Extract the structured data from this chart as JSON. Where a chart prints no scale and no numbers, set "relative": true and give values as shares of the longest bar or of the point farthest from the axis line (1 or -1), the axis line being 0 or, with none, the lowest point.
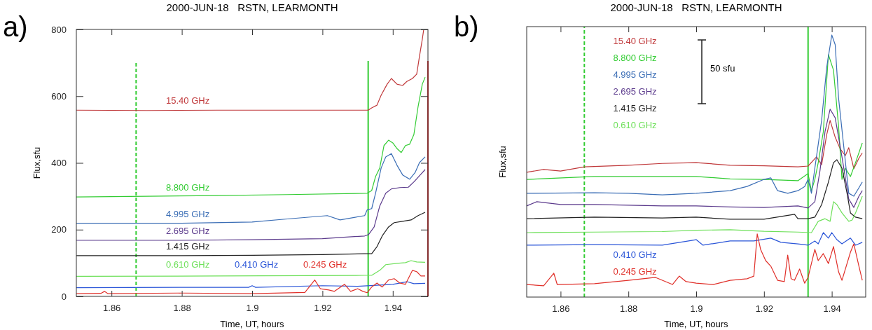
{
  "chart_data": [
    {
      "type": "line",
      "title": "2000-JUN-18   RSTN, LEARMONTH",
      "xlabel": "Time, UT, hours",
      "ylabel": "Flux,sfu",
      "annotations": [
        "a)"
      ],
      "xlim": [
        1.85,
        1.95
      ],
      "xticks": [
        1.86,
        1.88,
        1.9,
        1.92,
        1.94
      ],
      "ylim": [
        0,
        800
      ],
      "yticks": [
        0,
        200,
        400,
        600,
        800
      ],
      "ref_lines": [
        {
          "axis": "x",
          "value": 1.867,
          "color": "#33cc33",
          "line_style": "dashed"
        },
        {
          "axis": "x",
          "value": 1.933,
          "color": "#33cc33",
          "line_style": "solid"
        },
        {
          "axis": "x",
          "value": 1.95,
          "color": "#d62728",
          "line_style": "solid"
        }
      ],
      "series": [
        {
          "name": "15.40 GHz",
          "color": "#c0393b",
          "x": [
            1.85,
            1.87,
            1.89,
            1.91,
            1.933,
            1.934,
            1.9355,
            1.9367,
            1.9384,
            1.9396,
            1.9412,
            1.9428,
            1.944,
            1.9456,
            1.9468,
            1.9476,
            1.9484,
            1.9488
          ],
          "values": [
            558,
            557,
            558,
            558,
            558,
            565,
            573,
            603,
            636,
            653,
            636,
            632,
            644,
            653,
            666,
            720,
            771,
            800
          ]
        },
        {
          "name": "8.800 GHz",
          "color": "#33cc33",
          "x": [
            1.85,
            1.87,
            1.89,
            1.91,
            1.9327,
            1.934,
            1.9351,
            1.9363,
            1.9375,
            1.9388,
            1.94,
            1.9412,
            1.9424,
            1.9436,
            1.9448,
            1.946,
            1.9472,
            1.9484,
            1.9492
          ],
          "values": [
            298,
            300,
            302,
            305,
            309,
            317,
            359,
            385,
            452,
            468,
            460,
            443,
            431,
            452,
            456,
            485,
            569,
            636,
            657
          ]
        },
        {
          "name": "4.995 GHz",
          "color": "#3a6db5",
          "x": [
            1.85,
            1.88,
            1.9,
            1.91,
            1.9214,
            1.925,
            1.932,
            1.9327,
            1.934,
            1.9351,
            1.9367,
            1.938,
            1.9396,
            1.9412,
            1.9428,
            1.9448,
            1.9464,
            1.9476,
            1.9492
          ],
          "values": [
            219,
            219,
            223,
            232,
            242,
            229,
            242,
            259,
            263,
            309,
            385,
            418,
            428,
            393,
            364,
            351,
            372,
            401,
            418
          ]
        },
        {
          "name": "2.695 GHz",
          "color": "#5b3a8c",
          "x": [
            1.85,
            1.88,
            1.9,
            1.92,
            1.932,
            1.9331,
            1.9347,
            1.9363,
            1.938,
            1.9396,
            1.942,
            1.9444,
            1.946,
            1.948,
            1.9492
          ],
          "values": [
            168,
            168,
            170,
            173,
            181,
            185,
            208,
            271,
            309,
            322,
            326,
            327,
            343,
            366,
            380
          ]
        },
        {
          "name": "1.415 GHz",
          "color": "#222222",
          "x": [
            1.85,
            1.88,
            1.9,
            1.92,
            1.932,
            1.934,
            1.9355,
            1.9371,
            1.9388,
            1.9404,
            1.9428,
            1.9452,
            1.9472,
            1.9492
          ],
          "values": [
            122,
            122,
            123,
            125,
            128,
            128,
            149,
            183,
            208,
            221,
            225,
            229,
            242,
            252
          ]
        },
        {
          "name": "0.610 GHz",
          "color": "#6ee05a",
          "x": [
            1.85,
            1.89,
            1.932,
            1.934,
            1.9363,
            1.938,
            1.9412,
            1.9436,
            1.9452,
            1.9468,
            1.9492
          ],
          "values": [
            60,
            61,
            63,
            63,
            78,
            95,
            99,
            101,
            107,
            103,
            102
          ]
        },
        {
          "name": "0.410 GHz",
          "color": "#2a55d8",
          "x": [
            1.85,
            1.88,
            1.899,
            1.9,
            1.901,
            1.92,
            1.93,
            1.94,
            1.944,
            1.946,
            1.9492
          ],
          "values": [
            26,
            27,
            27,
            32,
            27,
            32,
            30,
            36,
            44,
            38,
            39
          ]
        },
        {
          "name": "0.245 GHz",
          "color": "#e0302a",
          "x": [
            1.85,
            1.857,
            1.858,
            1.859,
            1.88,
            1.9,
            1.915,
            1.9178,
            1.9194,
            1.9218,
            1.9234,
            1.9263,
            1.928,
            1.93,
            1.9315,
            1.9327,
            1.934,
            1.9355,
            1.937,
            1.9388,
            1.9404,
            1.942,
            1.9436,
            1.9456,
            1.9468,
            1.948,
            1.9492
          ],
          "values": [
            8,
            9,
            15,
            8,
            10,
            8,
            12,
            49,
            23,
            19,
            15,
            36,
            15,
            23,
            15,
            11,
            28,
            40,
            28,
            49,
            53,
            40,
            36,
            78,
            74,
            61,
            61
          ]
        }
      ]
    },
    {
      "type": "line",
      "title": "2000-JUN-18   RSTN, LEARMONTH",
      "xlabel": "Time, UT, hours",
      "ylabel": "Flux,sfu",
      "annotations": [
        "b)",
        "50 sfu"
      ],
      "relative": true,
      "xlim": [
        1.85,
        1.95
      ],
      "xticks": [
        1.86,
        1.88,
        1.9,
        1.92,
        1.94
      ],
      "ref_lines": [
        {
          "axis": "x",
          "value": 1.867,
          "color": "#33cc33",
          "line_style": "dashed"
        },
        {
          "axis": "x",
          "value": 1.933,
          "color": "#33cc33",
          "line_style": "solid"
        }
      ],
      "series": [
        {
          "name": "15.40 GHz",
          "color": "#c0393b",
          "x": [
            1.85,
            1.855,
            1.86,
            1.867,
            1.88,
            1.89,
            1.9,
            1.91,
            1.92,
            1.93,
            1.933,
            1.9355,
            1.937,
            1.9385,
            1.9395,
            1.941,
            1.9425,
            1.944,
            1.945,
            1.9465,
            1.948,
            1.949
          ],
          "values": [
            0.476,
            0.487,
            0.481,
            0.497,
            0.503,
            0.51,
            0.513,
            0.503,
            0.501,
            0.497,
            0.5,
            0.535,
            0.505,
            0.62,
            0.674,
            0.61,
            0.565,
            0.54,
            0.57,
            0.49,
            0.53,
            0.55
          ]
        },
        {
          "name": "8.800 GHz",
          "color": "#33cc33",
          "x": [
            1.85,
            1.87,
            1.89,
            1.9,
            1.91,
            1.92,
            1.93,
            1.933,
            1.934,
            1.935,
            1.936,
            1.9375,
            1.939,
            1.9405,
            1.942,
            1.943,
            1.944,
            1.9455,
            1.947,
            1.949
          ],
          "values": [
            0.449,
            0.46,
            0.46,
            0.46,
            0.451,
            0.449,
            0.444,
            0.471,
            0.406,
            0.449,
            0.513,
            0.631,
            0.925,
            0.866,
            0.652,
            0.449,
            0.492,
            0.46,
            0.513,
            0.588
          ]
        },
        {
          "name": "4.995 GHz",
          "color": "#3a6db5",
          "x": [
            1.85,
            1.87,
            1.88,
            1.89,
            1.9,
            1.91,
            1.915,
            1.92,
            1.922,
            1.924,
            1.927,
            1.93,
            1.932,
            1.933,
            1.934,
            1.935,
            1.937,
            1.9385,
            1.94,
            1.941,
            1.942,
            1.9435,
            1.945,
            1.9465,
            1.948,
            1.949
          ],
          "values": [
            0.396,
            0.398,
            0.396,
            0.39,
            0.396,
            0.406,
            0.422,
            0.449,
            0.455,
            0.406,
            0.396,
            0.406,
            0.422,
            0.449,
            0.396,
            0.492,
            0.674,
            0.877,
            1.0,
            0.963,
            0.759,
            0.578,
            0.396,
            0.385,
            0.417,
            0.439
          ]
        },
        {
          "name": "2.695 GHz",
          "color": "#5b3a8c",
          "x": [
            1.85,
            1.853,
            1.86,
            1.87,
            1.89,
            1.9,
            1.91,
            1.92,
            1.93,
            1.933,
            1.935,
            1.9365,
            1.938,
            1.9395,
            1.941,
            1.943,
            1.945,
            1.9465,
            1.948,
            1.949
          ],
          "values": [
            0.348,
            0.364,
            0.353,
            0.353,
            0.348,
            0.348,
            0.344,
            0.342,
            0.348,
            0.34,
            0.364,
            0.481,
            0.631,
            0.717,
            0.684,
            0.535,
            0.374,
            0.342,
            0.385,
            0.406
          ]
        },
        {
          "name": "1.415 GHz",
          "color": "#222222",
          "x": [
            1.85,
            1.87,
            1.89,
            1.9,
            1.91,
            1.92,
            1.929,
            1.93,
            1.933,
            1.935,
            1.937,
            1.939,
            1.9405,
            1.9415,
            1.943,
            1.9445,
            1.9455,
            1.947,
            1.949
          ],
          "values": [
            0.299,
            0.305,
            0.302,
            0.305,
            0.297,
            0.297,
            0.316,
            0.299,
            0.299,
            0.305,
            0.353,
            0.439,
            0.513,
            0.524,
            0.492,
            0.396,
            0.321,
            0.305,
            0.299
          ]
        },
        {
          "name": "0.610 GHz",
          "color": "#6ee05a",
          "x": [
            1.85,
            1.87,
            1.89,
            1.9,
            1.91,
            1.92,
            1.93,
            1.934,
            1.936,
            1.938,
            1.9395,
            1.9405,
            1.9415,
            1.943,
            1.945,
            1.946,
            1.947,
            1.949
          ],
          "values": [
            0.246,
            0.248,
            0.25,
            0.255,
            0.257,
            0.251,
            0.248,
            0.246,
            0.289,
            0.299,
            0.289,
            0.364,
            0.353,
            0.321,
            0.289,
            0.294,
            0.321,
            0.385
          ]
        },
        {
          "name": "0.410 GHz",
          "color": "#2a55d8",
          "x": [
            1.85,
            1.87,
            1.89,
            1.9,
            1.902,
            1.91,
            1.917,
            1.922,
            1.925,
            1.93,
            1.933,
            1.935,
            1.936,
            1.9375,
            1.939,
            1.94,
            1.9415,
            1.943,
            1.9455,
            1.947,
            1.949
          ],
          "values": [
            0.198,
            0.2,
            0.198,
            0.219,
            0.198,
            0.214,
            0.214,
            0.225,
            0.209,
            0.203,
            0.198,
            0.214,
            0.203,
            0.246,
            0.225,
            0.246,
            0.219,
            0.203,
            0.225,
            0.198,
            0.209
          ]
        },
        {
          "name": "0.245 GHz",
          "color": "#e0302a",
          "x": [
            1.85,
            1.855,
            1.858,
            1.859,
            1.87,
            1.88,
            1.888,
            1.893,
            1.895,
            1.897,
            1.9,
            1.905,
            1.91,
            1.915,
            1.917,
            1.918,
            1.919,
            1.9205,
            1.922,
            1.924,
            1.926,
            1.927,
            1.928,
            1.929,
            1.9305,
            1.932,
            1.933,
            1.935,
            1.936,
            1.9375,
            1.939,
            1.9405,
            1.942,
            1.943,
            1.9455,
            1.9465,
            1.948,
            1.949
          ],
          "values": [
            0.048,
            0.043,
            0.091,
            0.048,
            0.051,
            0.064,
            0.075,
            0.048,
            0.08,
            0.059,
            0.053,
            0.048,
            0.064,
            0.07,
            0.08,
            0.241,
            0.182,
            0.139,
            0.118,
            0.064,
            0.059,
            0.16,
            0.07,
            0.064,
            0.107,
            0.053,
            0.075,
            0.182,
            0.139,
            0.166,
            0.128,
            0.193,
            0.096,
            0.064,
            0.171,
            0.203,
            0.118,
            0.064
          ]
        }
      ]
    }
  ]
}
